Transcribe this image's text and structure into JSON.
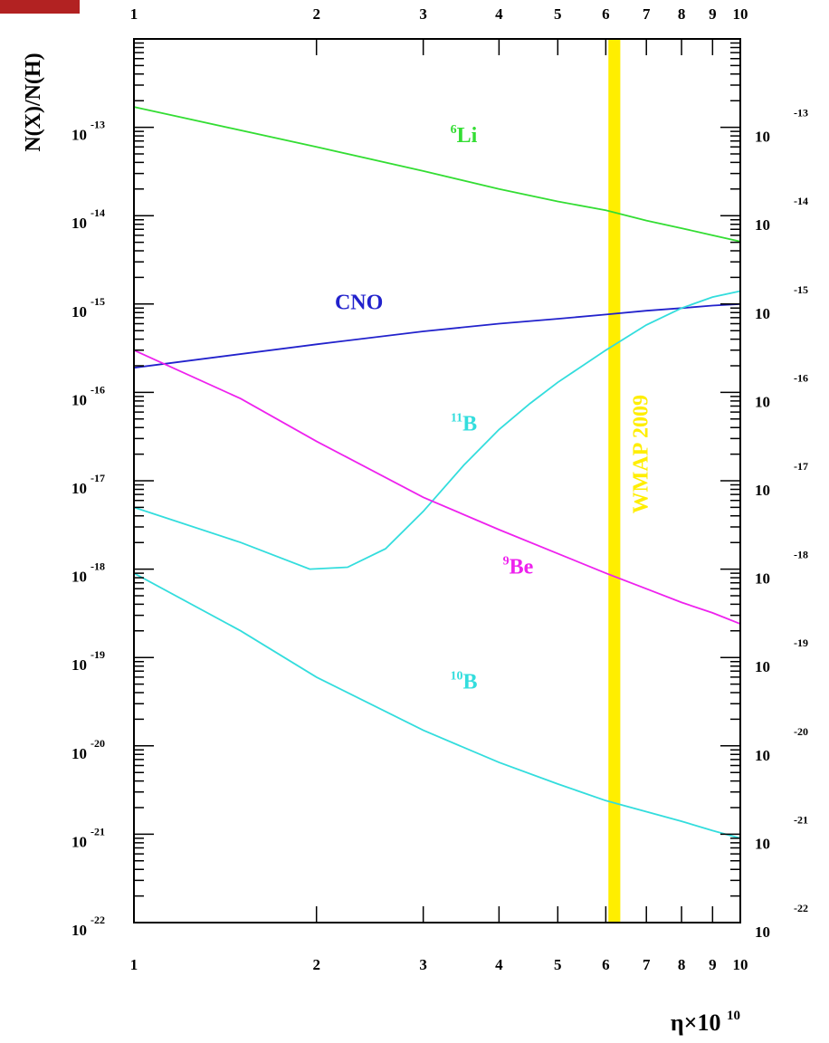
{
  "chart_data": {
    "type": "line",
    "title": "",
    "xlabel_symbol": "η×10",
    "xlabel_exponent": "10",
    "ylabel": "N(X)/N(H)",
    "x_scale": "log",
    "y_scale": "log",
    "xlim": [
      1,
      10
    ],
    "ylim": [
      1e-22,
      1e-12
    ],
    "x_ticks": [
      {
        "value": 1,
        "label": "1"
      },
      {
        "value": 2,
        "label": "2"
      },
      {
        "value": 3,
        "label": "3"
      },
      {
        "value": 4,
        "label": "4"
      },
      {
        "value": 5,
        "label": "5"
      },
      {
        "value": 6,
        "label": "6"
      },
      {
        "value": 7,
        "label": "7"
      },
      {
        "value": 8,
        "label": "8"
      },
      {
        "value": 9,
        "label": "9"
      },
      {
        "value": 10,
        "label": "10"
      }
    ],
    "y_ticks": [
      {
        "exp": -13,
        "base": "10",
        "sup": "-13"
      },
      {
        "exp": -14,
        "base": "10",
        "sup": "-14"
      },
      {
        "exp": -15,
        "base": "10",
        "sup": "-15"
      },
      {
        "exp": -16,
        "base": "10",
        "sup": "-16"
      },
      {
        "exp": -17,
        "base": "10",
        "sup": "-17"
      },
      {
        "exp": -18,
        "base": "10",
        "sup": "-18"
      },
      {
        "exp": -19,
        "base": "10",
        "sup": "-19"
      },
      {
        "exp": -20,
        "base": "10",
        "sup": "-20"
      },
      {
        "exp": -21,
        "base": "10",
        "sup": "-21"
      },
      {
        "exp": -22,
        "base": "10",
        "sup": "-22"
      }
    ],
    "grid": false,
    "series": [
      {
        "id": "li6",
        "label_sup": "6",
        "label_main": "Li",
        "label_at": {
          "x": 3.5,
          "log10y": -13.17
        },
        "color": "#33dd33",
        "points": [
          [
            1,
            1.7e-13
          ],
          [
            2,
            6e-14
          ],
          [
            3,
            3.2e-14
          ],
          [
            4,
            2e-14
          ],
          [
            5,
            1.45e-14
          ],
          [
            6,
            1.15e-14
          ],
          [
            7,
            8.8e-15
          ],
          [
            8,
            7.2e-15
          ],
          [
            9,
            6e-15
          ],
          [
            10,
            5.1e-15
          ]
        ]
      },
      {
        "id": "cno",
        "label_main": "CNO",
        "label_at": {
          "x": 2.35,
          "log10y": -15.06
        },
        "color": "#2222cc",
        "points": [
          [
            1,
            1.9e-16
          ],
          [
            2,
            3.5e-16
          ],
          [
            3,
            4.9e-16
          ],
          [
            4,
            6e-16
          ],
          [
            5,
            6.8e-16
          ],
          [
            6,
            7.6e-16
          ],
          [
            7,
            8.4e-16
          ],
          [
            8,
            9e-16
          ],
          [
            9,
            9.6e-16
          ],
          [
            10,
            1e-15
          ]
        ]
      },
      {
        "id": "b11",
        "label_sup": "11",
        "label_main": "B",
        "label_at": {
          "x": 3.5,
          "log10y": -16.43
        },
        "color": "#33dddd",
        "points": [
          [
            1,
            5e-18
          ],
          [
            1.5,
            2e-18
          ],
          [
            1.95,
            1e-18
          ],
          [
            2.25,
            1.05e-18
          ],
          [
            2.6,
            1.7e-18
          ],
          [
            3.0,
            4.5e-18
          ],
          [
            3.5,
            1.5e-17
          ],
          [
            4,
            3.8e-17
          ],
          [
            4.5,
            7.5e-17
          ],
          [
            5,
            1.3e-16
          ],
          [
            6,
            3e-16
          ],
          [
            7,
            5.8e-16
          ],
          [
            8,
            9e-16
          ],
          [
            9,
            1.2e-15
          ],
          [
            10,
            1.4e-15
          ]
        ]
      },
      {
        "id": "be9",
        "label_sup": "9",
        "label_main": "Be",
        "label_at": {
          "x": 4.3,
          "log10y": -18.05
        },
        "color": "#ee22ee",
        "points": [
          [
            1,
            3e-16
          ],
          [
            1.5,
            8.5e-17
          ],
          [
            2,
            2.8e-17
          ],
          [
            3,
            6.5e-18
          ],
          [
            4,
            2.8e-18
          ],
          [
            5,
            1.5e-18
          ],
          [
            6,
            9e-19
          ],
          [
            7,
            6e-19
          ],
          [
            8,
            4.2e-19
          ],
          [
            9,
            3.2e-19
          ],
          [
            10,
            2.4e-19
          ]
        ]
      },
      {
        "id": "b10",
        "label_sup": "10",
        "label_main": "B",
        "label_at": {
          "x": 3.5,
          "log10y": -19.35
        },
        "color": "#33dddd",
        "points": [
          [
            1,
            9e-19
          ],
          [
            1.5,
            2e-19
          ],
          [
            2,
            6e-20
          ],
          [
            3,
            1.5e-20
          ],
          [
            4,
            6.5e-21
          ],
          [
            5,
            3.7e-21
          ],
          [
            6,
            2.4e-21
          ],
          [
            7,
            1.8e-21
          ],
          [
            8,
            1.4e-21
          ],
          [
            9,
            1.1e-21
          ],
          [
            10,
            9e-22
          ]
        ]
      }
    ],
    "band": {
      "label": "WMAP 2009",
      "x_range": [
        6.06,
        6.34
      ],
      "color": "#ffee00"
    }
  }
}
